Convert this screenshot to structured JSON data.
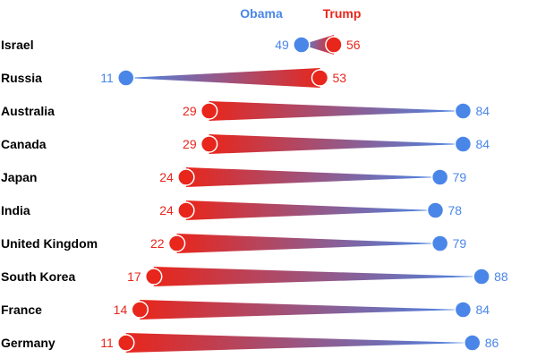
{
  "chart_data": {
    "type": "dumbbell",
    "categories": [
      "Israel",
      "Russia",
      "Australia",
      "Canada",
      "Japan",
      "India",
      "United Kingdom",
      "South Korea",
      "France",
      "Germany"
    ],
    "series": [
      {
        "name": "Obama",
        "values": [
          49,
          11,
          84,
          84,
          79,
          78,
          79,
          88,
          84,
          86
        ]
      },
      {
        "name": "Trump",
        "values": [
          56,
          53,
          29,
          29,
          24,
          24,
          22,
          17,
          14,
          11
        ]
      }
    ],
    "legend_position": "top-center",
    "grid": false,
    "colors": {
      "Obama": "#4a86e8",
      "Trump": "#e8261c"
    }
  }
}
